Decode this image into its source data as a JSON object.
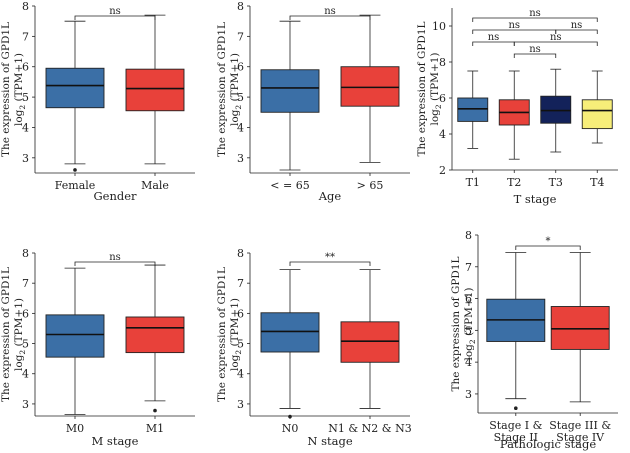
{
  "ylabel_line1": "The expression of GPD1L",
  "ylabel_log": "log",
  "ylabel_sub": "2",
  "ylabel_rest": "(TPM+1)",
  "colors": {
    "blue": "#3b6fa6",
    "red": "#e8413a",
    "navy": "#13225a",
    "yellow": "#f7ee79",
    "line": "#222222"
  },
  "chart_data": [
    {
      "type": "box",
      "xlabel": "Gender",
      "ylabel": "The expression of GPD1L log2 (TPM+1)",
      "ylim": [
        2.5,
        8
      ],
      "yticks": [
        "3",
        "4",
        "5",
        "6",
        "7",
        "8"
      ],
      "groups": [
        {
          "label": "Female",
          "color": "blue",
          "min": 2.8,
          "q1": 4.65,
          "median": 5.38,
          "q3": 5.95,
          "max": 7.5,
          "outliers": [
            2.6
          ]
        },
        {
          "label": "Male",
          "color": "red",
          "min": 2.8,
          "q1": 4.55,
          "median": 5.28,
          "q3": 5.92,
          "max": 7.7,
          "outliers": []
        }
      ],
      "comparisons": [
        {
          "from": 0,
          "to": 1,
          "label": "ns"
        }
      ]
    },
    {
      "type": "box",
      "xlabel": "Age",
      "ylabel": "The expression of GPD1L log2 (TPM+1)",
      "ylim": [
        2.5,
        8
      ],
      "yticks": [
        "3",
        "4",
        "5",
        "6",
        "7",
        "8"
      ],
      "groups": [
        {
          "label": "< = 65",
          "color": "blue",
          "min": 2.6,
          "q1": 4.5,
          "median": 5.3,
          "q3": 5.9,
          "max": 7.5,
          "outliers": []
        },
        {
          "label": "> 65",
          "color": "red",
          "min": 2.85,
          "q1": 4.7,
          "median": 5.32,
          "q3": 6.0,
          "max": 7.7,
          "outliers": []
        }
      ],
      "comparisons": [
        {
          "from": 0,
          "to": 1,
          "label": "ns"
        }
      ]
    },
    {
      "type": "box",
      "xlabel": "T stage",
      "ylabel": "The expression of GPD1L log2 (TPM+1)",
      "ylim": [
        2,
        11
      ],
      "yticks": [
        "2",
        "4",
        "6",
        "8",
        "10"
      ],
      "groups": [
        {
          "label": "T1",
          "color": "blue",
          "min": 3.2,
          "q1": 4.7,
          "median": 5.4,
          "q3": 6.0,
          "max": 7.5,
          "outliers": []
        },
        {
          "label": "T2",
          "color": "red",
          "min": 2.6,
          "q1": 4.5,
          "median": 5.2,
          "q3": 5.9,
          "max": 7.5,
          "outliers": []
        },
        {
          "label": "T3",
          "color": "navy",
          "min": 3.0,
          "q1": 4.6,
          "median": 5.3,
          "q3": 6.1,
          "max": 7.6,
          "outliers": []
        },
        {
          "label": "T4",
          "color": "yellow",
          "min": 3.5,
          "q1": 4.3,
          "median": 5.3,
          "q3": 5.9,
          "max": 7.5,
          "outliers": []
        }
      ],
      "comparisons": [
        {
          "from": 0,
          "to": 1,
          "label": "ns"
        },
        {
          "from": 0,
          "to": 2,
          "label": "ns"
        },
        {
          "from": 0,
          "to": 3,
          "label": "ns"
        },
        {
          "from": 1,
          "to": 2,
          "label": "ns"
        },
        {
          "from": 1,
          "to": 3,
          "label": "ns"
        },
        {
          "from": 2,
          "to": 3,
          "label": "ns"
        }
      ]
    },
    {
      "type": "box",
      "xlabel": "M stage",
      "ylabel": "The expression of GPD1L log2 (TPM+1)",
      "ylim": [
        2.6,
        8
      ],
      "yticks": [
        "3",
        "4",
        "5",
        "6",
        "7",
        "8"
      ],
      "groups": [
        {
          "label": "M0",
          "color": "blue",
          "min": 2.65,
          "q1": 4.55,
          "median": 5.3,
          "q3": 5.95,
          "max": 7.5,
          "outliers": []
        },
        {
          "label": "M1",
          "color": "red",
          "min": 3.1,
          "q1": 4.7,
          "median": 5.52,
          "q3": 5.88,
          "max": 7.6,
          "outliers": [
            2.78
          ]
        }
      ],
      "comparisons": [
        {
          "from": 0,
          "to": 1,
          "label": "ns"
        }
      ]
    },
    {
      "type": "box",
      "xlabel": "N stage",
      "ylabel": "The expression of GPD1L log2 (TPM+1)",
      "ylim": [
        2.6,
        8
      ],
      "yticks": [
        "3",
        "4",
        "5",
        "6",
        "7",
        "8"
      ],
      "groups": [
        {
          "label": "N0",
          "color": "blue",
          "min": 2.85,
          "q1": 4.72,
          "median": 5.4,
          "q3": 6.02,
          "max": 7.45,
          "outliers": [
            2.58
          ]
        },
        {
          "label": "N1 & N2 & N3",
          "color": "red",
          "min": 2.85,
          "q1": 4.38,
          "median": 5.08,
          "q3": 5.72,
          "max": 7.45,
          "outliers": []
        }
      ],
      "comparisons": [
        {
          "from": 0,
          "to": 1,
          "label": "**"
        }
      ]
    },
    {
      "type": "box",
      "xlabel": "Pathologic stage",
      "ylabel": "The expression of GPD1L log2 (TPM+1)",
      "ylim": [
        2.4,
        8
      ],
      "yticks": [
        "3",
        "4",
        "5",
        "6",
        "7",
        "8"
      ],
      "groups": [
        {
          "label": [
            "Stage I &",
            "Stage II"
          ],
          "color": "blue",
          "min": 2.85,
          "q1": 4.65,
          "median": 5.33,
          "q3": 5.98,
          "max": 7.45,
          "outliers": [
            2.55
          ]
        },
        {
          "label": [
            "Stage III &",
            "Stage IV"
          ],
          "color": "red",
          "min": 2.75,
          "q1": 4.4,
          "median": 5.05,
          "q3": 5.75,
          "max": 7.45,
          "outliers": []
        }
      ],
      "comparisons": [
        {
          "from": 0,
          "to": 1,
          "label": "*"
        }
      ]
    }
  ]
}
